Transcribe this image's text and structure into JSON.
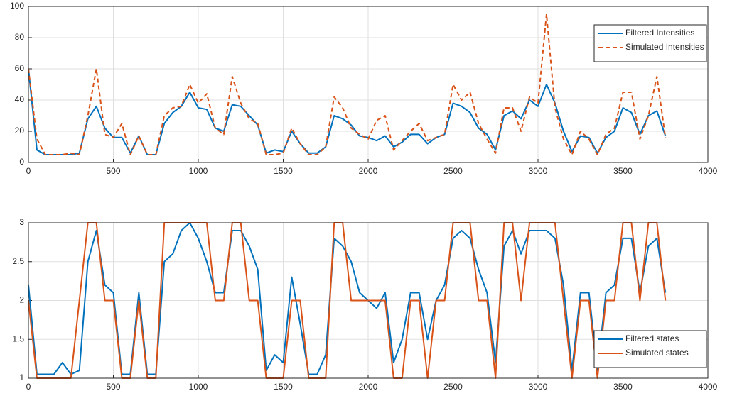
{
  "chart_data": [
    {
      "type": "line",
      "grid": true,
      "legend": "northeast",
      "xlim": [
        0,
        4000
      ],
      "xticks": [
        0,
        500,
        1000,
        1500,
        2000,
        2500,
        3000,
        3500,
        4000
      ],
      "ylim": [
        0,
        100
      ],
      "yticks": [
        0,
        20,
        40,
        60,
        80,
        100
      ],
      "x": [
        0,
        50,
        100,
        150,
        200,
        250,
        300,
        350,
        400,
        450,
        500,
        550,
        600,
        650,
        700,
        750,
        800,
        850,
        900,
        950,
        1000,
        1050,
        1100,
        1150,
        1200,
        1250,
        1300,
        1350,
        1400,
        1450,
        1500,
        1550,
        1600,
        1650,
        1700,
        1750,
        1800,
        1850,
        1900,
        1950,
        2000,
        2050,
        2100,
        2150,
        2200,
        2250,
        2300,
        2350,
        2400,
        2450,
        2500,
        2550,
        2600,
        2650,
        2700,
        2750,
        2800,
        2850,
        2900,
        2950,
        3000,
        3050,
        3100,
        3150,
        3200,
        3250,
        3300,
        3350,
        3400,
        3450,
        3500,
        3550,
        3600,
        3650,
        3700,
        3750
      ],
      "series": [
        {
          "name": "Filtered Intensities",
          "color": "#0072BD",
          "dashed": false,
          "values": [
            60,
            8,
            5,
            5,
            5,
            5,
            6,
            28,
            36,
            22,
            16,
            16,
            6,
            17,
            5,
            5,
            25,
            32,
            36,
            45,
            35,
            34,
            22,
            20,
            37,
            36,
            30,
            24,
            6,
            8,
            7,
            20,
            12,
            6,
            6,
            10,
            30,
            28,
            24,
            17,
            16,
            14,
            17,
            10,
            13,
            18,
            18,
            12,
            16,
            18,
            38,
            36,
            32,
            22,
            18,
            8,
            30,
            33,
            28,
            40,
            36,
            50,
            38,
            20,
            7,
            17,
            16,
            6,
            16,
            20,
            35,
            32,
            18,
            30,
            33,
            17
          ]
        },
        {
          "name": "Simulated Intensities",
          "color": "#D95319",
          "dashed": true,
          "values": [
            60,
            15,
            5,
            5,
            5,
            6,
            5,
            30,
            60,
            18,
            16,
            25,
            5,
            17,
            5,
            5,
            30,
            35,
            36,
            50,
            38,
            44,
            22,
            18,
            55,
            38,
            28,
            25,
            5,
            5,
            6,
            22,
            12,
            5,
            5,
            10,
            42,
            35,
            22,
            18,
            15,
            27,
            30,
            8,
            14,
            20,
            25,
            14,
            16,
            18,
            50,
            40,
            45,
            25,
            15,
            6,
            35,
            35,
            20,
            42,
            38,
            95,
            35,
            15,
            5,
            20,
            15,
            5,
            18,
            22,
            45,
            45,
            15,
            30,
            55,
            16
          ]
        }
      ]
    },
    {
      "type": "line",
      "grid": true,
      "legend": "southeast",
      "xlim": [
        0,
        4000
      ],
      "xticks": [
        0,
        500,
        1000,
        1500,
        2000,
        2500,
        3000,
        3500,
        4000
      ],
      "ylim": [
        1,
        3
      ],
      "yticks": [
        1,
        1.5,
        2,
        2.5,
        3
      ],
      "x": [
        0,
        50,
        100,
        150,
        200,
        250,
        300,
        350,
        400,
        450,
        500,
        550,
        600,
        650,
        700,
        750,
        800,
        850,
        900,
        950,
        1000,
        1050,
        1100,
        1150,
        1200,
        1250,
        1300,
        1350,
        1400,
        1450,
        1500,
        1550,
        1600,
        1650,
        1700,
        1750,
        1800,
        1850,
        1900,
        1950,
        2000,
        2050,
        2100,
        2150,
        2200,
        2250,
        2300,
        2350,
        2400,
        2450,
        2500,
        2550,
        2600,
        2650,
        2700,
        2750,
        2800,
        2850,
        2900,
        2950,
        3000,
        3050,
        3100,
        3150,
        3200,
        3250,
        3300,
        3350,
        3400,
        3450,
        3500,
        3550,
        3600,
        3650,
        3700,
        3750
      ],
      "series": [
        {
          "name": "Filtered states",
          "color": "#0072BD",
          "dashed": false,
          "values": [
            2.2,
            1.05,
            1.05,
            1.05,
            1.2,
            1.05,
            1.1,
            2.5,
            2.9,
            2.2,
            2.1,
            1.05,
            1.05,
            2.1,
            1.05,
            1.05,
            2.5,
            2.6,
            2.9,
            3,
            2.8,
            2.5,
            2.1,
            2.1,
            2.9,
            2.9,
            2.7,
            2.4,
            1.1,
            1.3,
            1.2,
            2.3,
            1.7,
            1.05,
            1.05,
            1.3,
            2.8,
            2.7,
            2.5,
            2.1,
            2,
            1.9,
            2.1,
            1.2,
            1.5,
            2.1,
            2.1,
            1.5,
            2,
            2.2,
            2.8,
            2.9,
            2.8,
            2.4,
            2.1,
            1.2,
            2.7,
            2.9,
            2.6,
            2.9,
            2.9,
            2.9,
            2.8,
            2.2,
            1.1,
            2.1,
            2.1,
            1.1,
            2.1,
            2.2,
            2.8,
            2.8,
            2.1,
            2.7,
            2.8,
            2.1
          ]
        },
        {
          "name": "Simulated states",
          "color": "#D95319",
          "dashed": false,
          "values": [
            2,
            1,
            1,
            1,
            1,
            1,
            2,
            3,
            3,
            2,
            2,
            1,
            1,
            2,
            1,
            1,
            3,
            3,
            3,
            3,
            3,
            3,
            2,
            2,
            3,
            3,
            2,
            2,
            1,
            1,
            1,
            2,
            2,
            1,
            1,
            1,
            3,
            3,
            2,
            2,
            2,
            2,
            2,
            1,
            1,
            2,
            2,
            1,
            2,
            2,
            3,
            3,
            3,
            2,
            2,
            1,
            3,
            3,
            2,
            3,
            3,
            3,
            3,
            2,
            1,
            2,
            2,
            1,
            2,
            2,
            3,
            3,
            2,
            3,
            3,
            2
          ]
        }
      ]
    }
  ]
}
